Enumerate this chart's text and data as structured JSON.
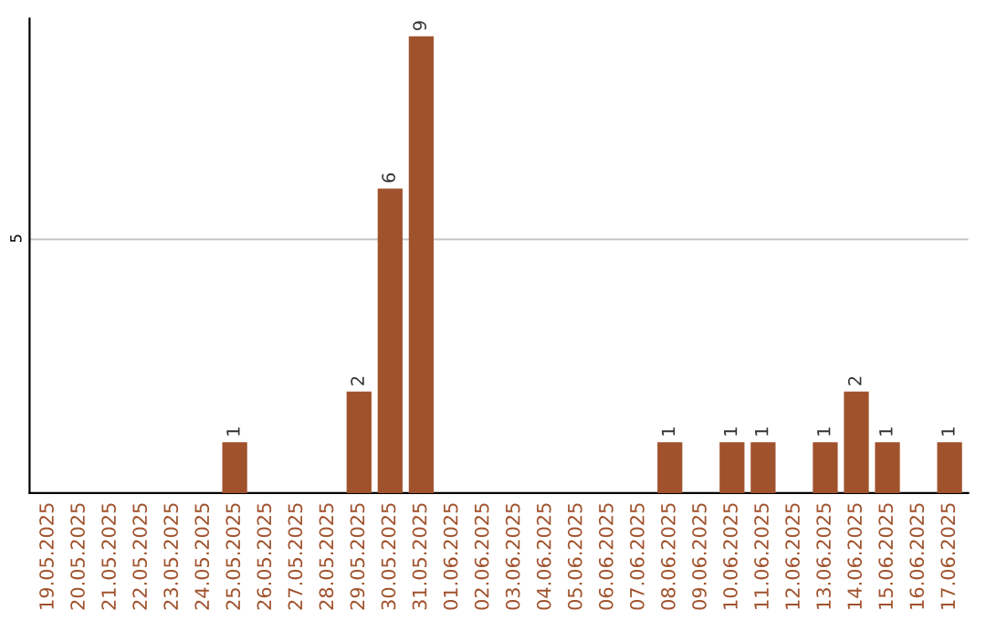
{
  "chart_data": {
    "type": "bar",
    "categories": [
      "19.05.2025",
      "20.05.2025",
      "21.05.2025",
      "22.05.2025",
      "23.05.2025",
      "24.05.2025",
      "25.05.2025",
      "26.05.2025",
      "27.05.2025",
      "28.05.2025",
      "29.05.2025",
      "30.05.2025",
      "31.05.2025",
      "01.06.2025",
      "02.06.2025",
      "03.06.2025",
      "04.06.2025",
      "05.06.2025",
      "06.06.2025",
      "07.06.2025",
      "08.06.2025",
      "09.06.2025",
      "10.06.2025",
      "11.06.2025",
      "12.06.2025",
      "13.06.2025",
      "14.06.2025",
      "15.06.2025",
      "16.06.2025",
      "17.06.2025"
    ],
    "values": [
      0,
      0,
      0,
      0,
      0,
      0,
      1,
      0,
      0,
      0,
      2,
      6,
      9,
      0,
      0,
      0,
      0,
      0,
      0,
      0,
      1,
      0,
      1,
      1,
      0,
      1,
      2,
      1,
      0,
      1
    ],
    "color": "#a0522d",
    "value_labels": [
      null,
      null,
      null,
      null,
      null,
      null,
      "1",
      null,
      null,
      null,
      "2",
      "6",
      "9",
      null,
      null,
      null,
      null,
      null,
      null,
      null,
      "1",
      null,
      "1",
      "1",
      null,
      "1",
      "2",
      "1",
      null,
      "1"
    ],
    "ylim": [
      0,
      9.35
    ],
    "yticks": [
      5
    ],
    "grid": "y"
  }
}
